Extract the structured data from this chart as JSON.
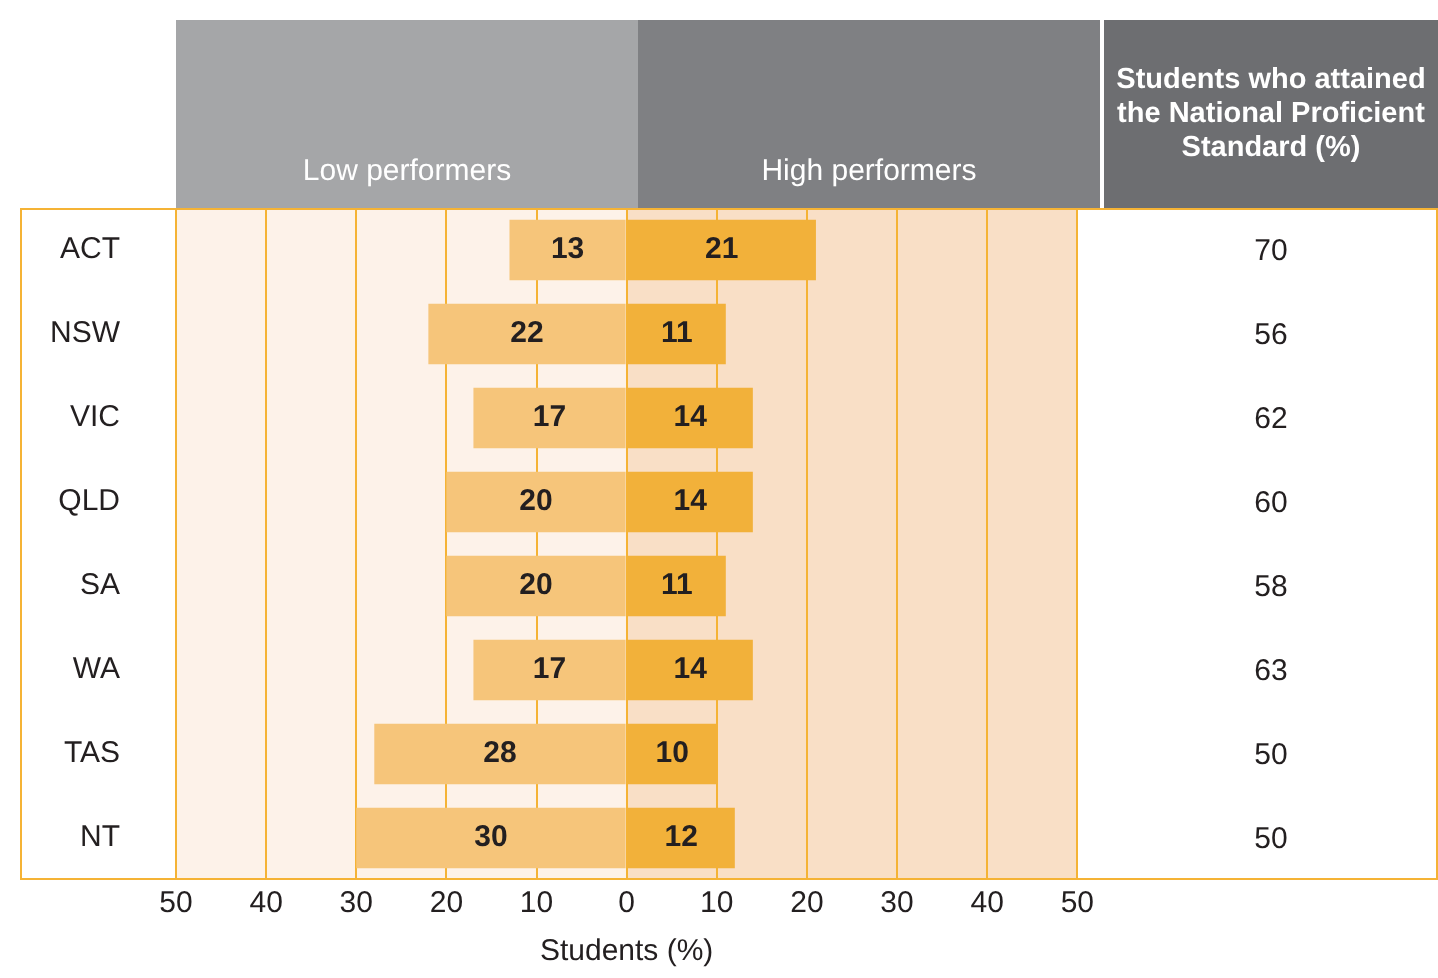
{
  "chart_data": [
    {
      "type": "bar",
      "orientation": "horizontal",
      "categories": [
        "ACT",
        "NSW",
        "VIC",
        "QLD",
        "SA",
        "WA",
        "TAS",
        "NT"
      ],
      "series": [
        {
          "color": "#f6c57a",
          "values": [
            13,
            22,
            17,
            20,
            20,
            17,
            28,
            30
          ],
          "base": [
            -13,
            -22,
            -17,
            -20,
            -20,
            -17,
            -28,
            -30
          ]
        },
        {
          "color": "#f2b13a",
          "values": [
            21,
            11,
            14,
            14,
            11,
            14,
            10,
            12
          ]
        }
      ],
      "data_labels": true,
      "xlim": [
        -50,
        50
      ],
      "xticks": [
        {
          "value": -50,
          "label": "50"
        },
        {
          "value": -40,
          "label": "40"
        },
        {
          "value": -30,
          "label": "30"
        },
        {
          "value": -20,
          "label": "20"
        },
        {
          "value": -10,
          "label": "10"
        },
        0,
        10,
        20,
        30,
        40,
        50
      ],
      "xlabel": "Students (%)",
      "grid": "x",
      "legend": false,
      "bands": [
        {
          "axis": "x",
          "from": -50,
          "to": 0,
          "color": "#fdf2e9"
        },
        {
          "axis": "x",
          "from": 0,
          "to": 50,
          "color": "#f9dfc6"
        }
      ],
      "annotations": [
        "Low performers",
        "High performers"
      ]
    },
    {
      "type": "other",
      "title": "Students who attained the National Proficient Standard (%)",
      "data_labels": true,
      "values": [
        70,
        56,
        62,
        60,
        58,
        63,
        50,
        50
      ]
    }
  ]
}
